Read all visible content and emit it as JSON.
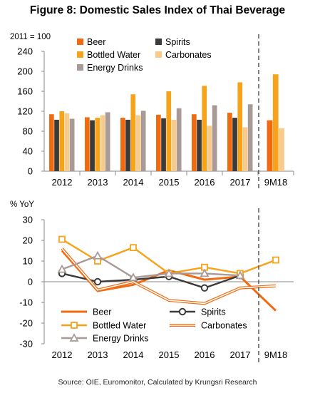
{
  "title": "Figure 8: Domestic Sales Index of Thai Beverage",
  "source": "Source: OIE, Euromonitor, Calculated by Krungsri Research",
  "colors": {
    "beer": "#F26A0F",
    "spirits": "#3B3B3B",
    "bottled_water": "#F7A21B",
    "carbonates": "#F9CB8A",
    "energy_drinks": "#A89A96"
  },
  "chart_data": [
    {
      "type": "bar",
      "unit_label": "2011 = 100",
      "categories": [
        "2012",
        "2013",
        "2014",
        "2015",
        "2016",
        "2017",
        "9M18"
      ],
      "ylim": [
        0,
        240
      ],
      "yticks": [
        0,
        40,
        80,
        120,
        160,
        200,
        240
      ],
      "grid": false,
      "legend": "top",
      "series": [
        {
          "name": "Beer",
          "key": "beer",
          "values": [
            114,
            108,
            107,
            113,
            114,
            117,
            102
          ]
        },
        {
          "name": "Spirits",
          "key": "spirits",
          "values": [
            103,
            102,
            103,
            106,
            103,
            107,
            null
          ]
        },
        {
          "name": "Bottled Water",
          "key": "bottled_water",
          "values": [
            120,
            107,
            154,
            160,
            171,
            178,
            194
          ]
        },
        {
          "name": "Carbonates",
          "key": "carbonates",
          "values": [
            116,
            112,
            112,
            103,
            91,
            88,
            86
          ]
        },
        {
          "name": "Energy Drinks",
          "key": "energy_drinks",
          "values": [
            105,
            118,
            121,
            126,
            132,
            134,
            null
          ]
        }
      ]
    },
    {
      "type": "line",
      "ylabel": "% YoY",
      "categories": [
        "2012",
        "2013",
        "2014",
        "2015",
        "2016",
        "2017",
        "9M18"
      ],
      "ylim": [
        -30,
        30
      ],
      "yticks": [
        -30,
        -20,
        -10,
        0,
        10,
        20,
        30
      ],
      "grid": false,
      "legend": "bottom-left",
      "series": [
        {
          "name": "Beer",
          "key": "beer",
          "values": [
            15,
            -4.5,
            -1.5,
            5.5,
            1,
            2.5,
            -14
          ]
        },
        {
          "name": "Spirits",
          "key": "spirits",
          "values": [
            4,
            0,
            1,
            2.5,
            -3,
            3,
            null
          ]
        },
        {
          "name": "Bottled Water",
          "key": "bottled_water",
          "values": [
            20.5,
            10,
            16.5,
            4,
            7,
            4,
            10.5
          ]
        },
        {
          "name": "Carbonates",
          "key": "carbonates",
          "values": [
            16,
            -4,
            0,
            -9,
            -10.5,
            -3,
            -2
          ]
        },
        {
          "name": "Energy Drinks",
          "key": "energy_drinks",
          "values": [
            6,
            12.5,
            2,
            4,
            4,
            3,
            null
          ]
        }
      ]
    }
  ]
}
